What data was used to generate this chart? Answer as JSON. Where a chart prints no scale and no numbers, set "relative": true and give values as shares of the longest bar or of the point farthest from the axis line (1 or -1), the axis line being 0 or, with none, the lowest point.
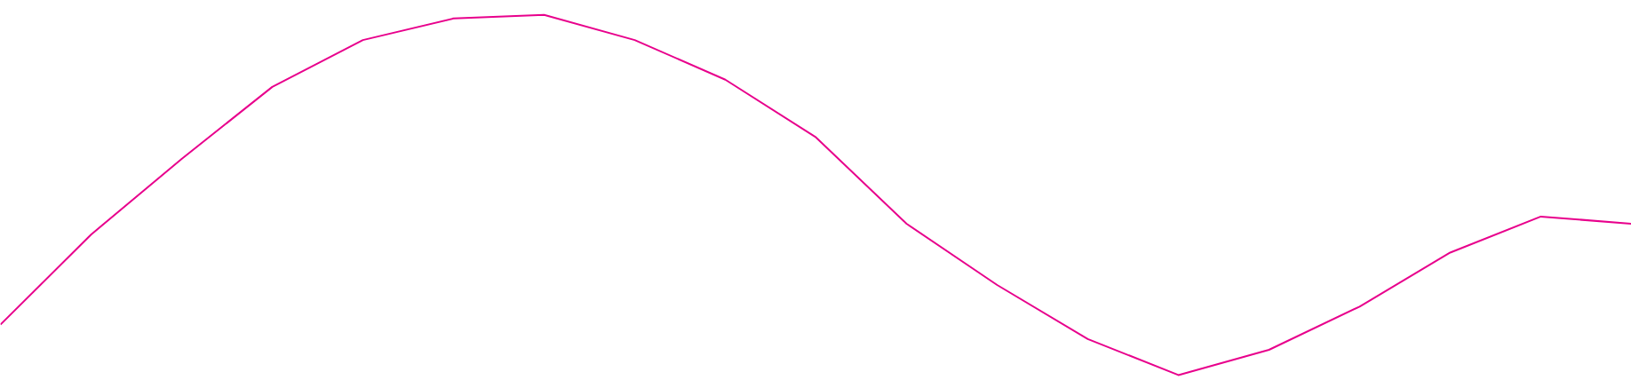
{
  "chart_data": {
    "type": "line",
    "relative": true,
    "categories": [
      null,
      null,
      null,
      null,
      null,
      null,
      null,
      null,
      null,
      null,
      null,
      null,
      null,
      null,
      null,
      null,
      null,
      null,
      null
    ],
    "series": [
      {
        "color": "#e8008c",
        "values": [
          0.14,
          0.39,
          0.6,
          0.8,
          0.93,
          0.99,
          1,
          0.93,
          0.82,
          0.66,
          0.42,
          0.25,
          0.1,
          0,
          0.07,
          0.19,
          0.34,
          0.44,
          0.42
        ]
      }
    ]
  }
}
